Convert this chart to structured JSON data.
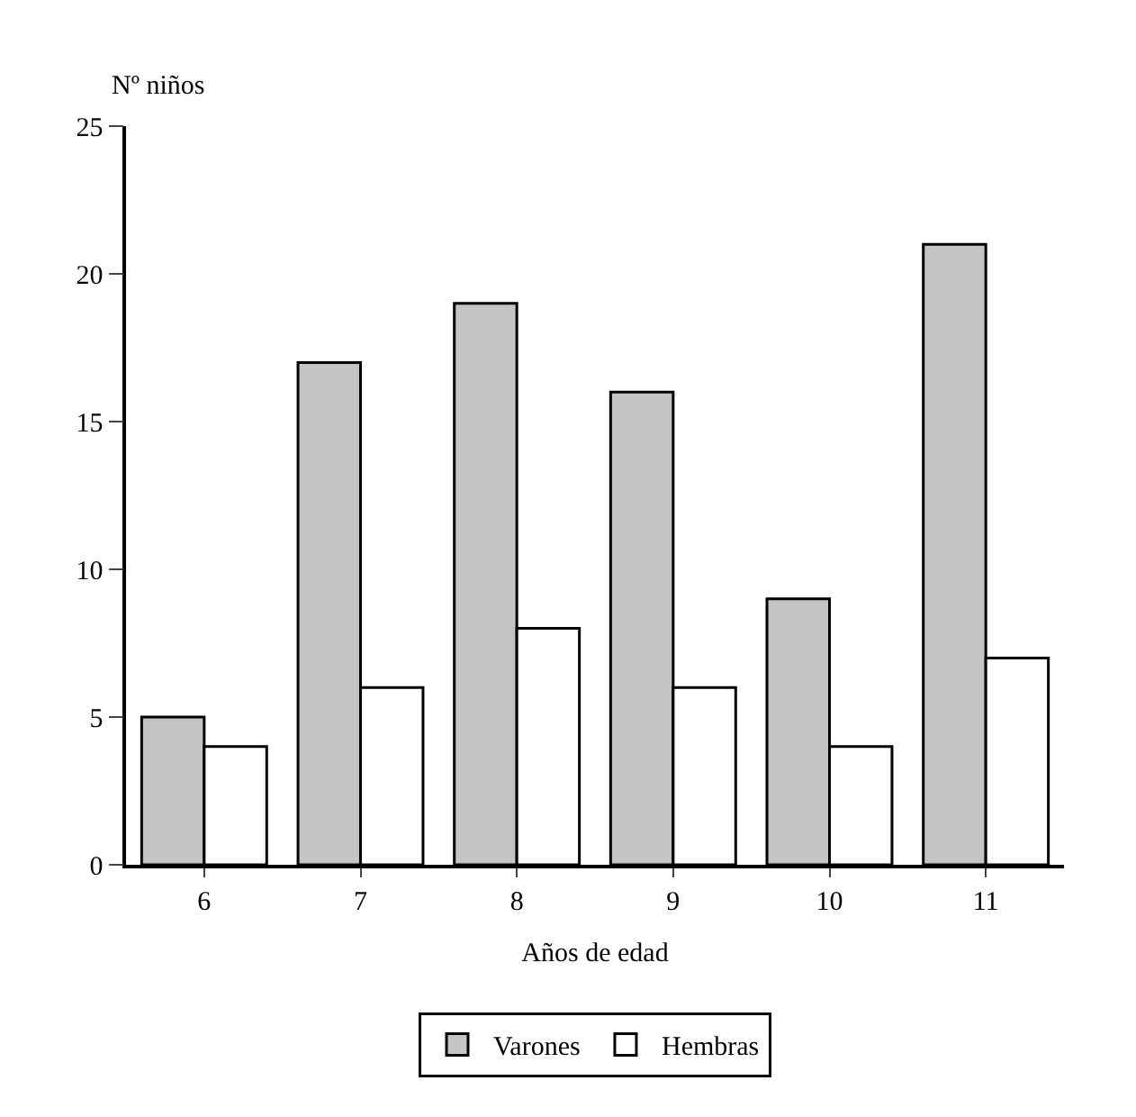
{
  "chart_data": {
    "type": "bar",
    "xlabel": "Años de edad",
    "ylabel": "Nº niños",
    "categories": [
      "6",
      "7",
      "8",
      "9",
      "10",
      "11"
    ],
    "series": [
      {
        "name": "Varones",
        "color": "#c4c4c4",
        "values": [
          5,
          17,
          19,
          16,
          9,
          21
        ]
      },
      {
        "name": "Hembras",
        "color": "#ffffff",
        "values": [
          4,
          6,
          8,
          6,
          4,
          7
        ]
      }
    ],
    "ylim": [
      0,
      25
    ],
    "yticks": [
      0,
      5,
      10,
      15,
      20,
      25
    ],
    "legend": "bottom"
  }
}
